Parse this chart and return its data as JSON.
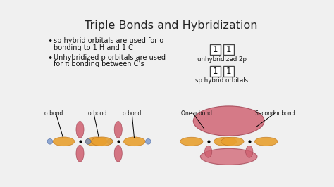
{
  "title": "Triple Bonds and Hybridization",
  "bg_color": "#f0f0f0",
  "title_color": "#222222",
  "title_fontsize": 11.5,
  "bullet1_line1": "sp hybrid orbitals are used for σ",
  "bullet1_line2": "bonding to 1 H and 1 C",
  "bullet2_line1": "Unhybridized p orbitals are used",
  "bullet2_line2": "for π bonding between C’s",
  "box_label1": "unhybridized 2p",
  "box_label2": "sp hybrid orbitals",
  "bottom_labels": [
    "σ bond",
    "σ bond",
    "σ bond",
    "One π bond",
    "Second π bond"
  ],
  "text_color": "#111111",
  "bullet_fontsize": 7.0,
  "label_fontsize": 6.2,
  "orange_color": "#E8A030",
  "orange_edge": "#C07820",
  "pink_color": "#D06070",
  "pink_edge": "#A04050",
  "blue_color": "#7090C8",
  "blue_edge": "#4060A0"
}
